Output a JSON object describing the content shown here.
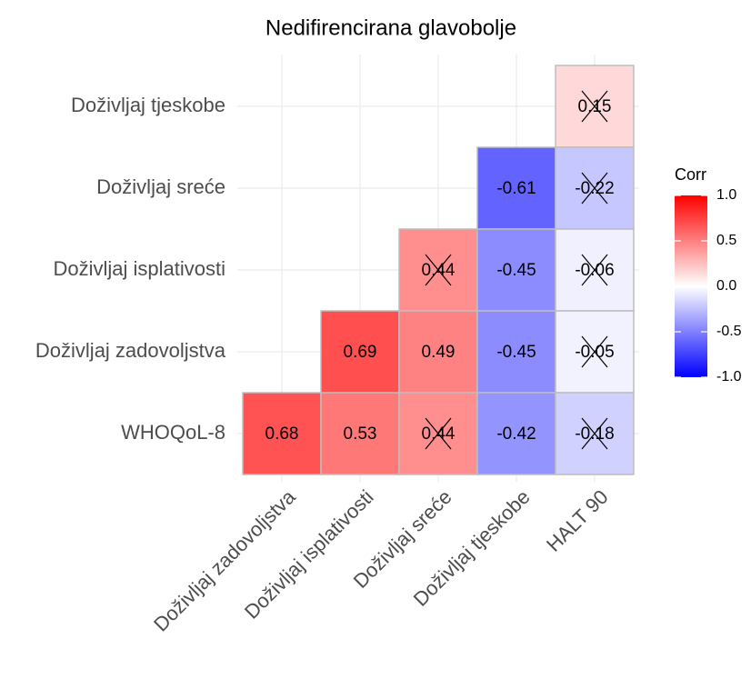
{
  "chart_data": {
    "type": "heatmap",
    "title": "Nedifirencirana glavobolje",
    "rows": [
      "Doživljaj tjeskobe",
      "Doživljaj sreće",
      "Doživljaj isplativosti",
      "Doživljaj zadovoljstva",
      "WHOQoL-8"
    ],
    "columns": [
      "Doživljaj zadovoljstva",
      "Doživljaj isplativosti",
      "Doživljaj sreće",
      "Doživljaj tjeskobe",
      "HALT 90"
    ],
    "values": [
      [
        null,
        null,
        null,
        null,
        0.15
      ],
      [
        null,
        null,
        null,
        -0.61,
        -0.22
      ],
      [
        null,
        null,
        0.44,
        -0.45,
        -0.06
      ],
      [
        null,
        0.69,
        0.49,
        -0.45,
        -0.05
      ],
      [
        0.68,
        0.53,
        0.44,
        -0.42,
        -0.18
      ]
    ],
    "insignificant": [
      [
        false,
        false,
        false,
        false,
        true
      ],
      [
        false,
        false,
        false,
        false,
        true
      ],
      [
        false,
        false,
        true,
        false,
        true
      ],
      [
        false,
        false,
        false,
        false,
        true
      ],
      [
        false,
        false,
        true,
        false,
        true
      ]
    ],
    "legend_title": "Corr",
    "colors": {
      "low": "#0000ff",
      "mid": "#ffffff",
      "high": "#ff0000"
    },
    "clim": [
      -1,
      1
    ],
    "cticks": [
      {
        "value": -1,
        "label": "-1.0"
      },
      {
        "value": -0.5,
        "label": "-0.5"
      },
      {
        "value": 0,
        "label": "0.0"
      },
      {
        "value": 0.5,
        "label": "0.5"
      },
      {
        "value": 1,
        "label": "1.0"
      }
    ],
    "grid": true
  }
}
